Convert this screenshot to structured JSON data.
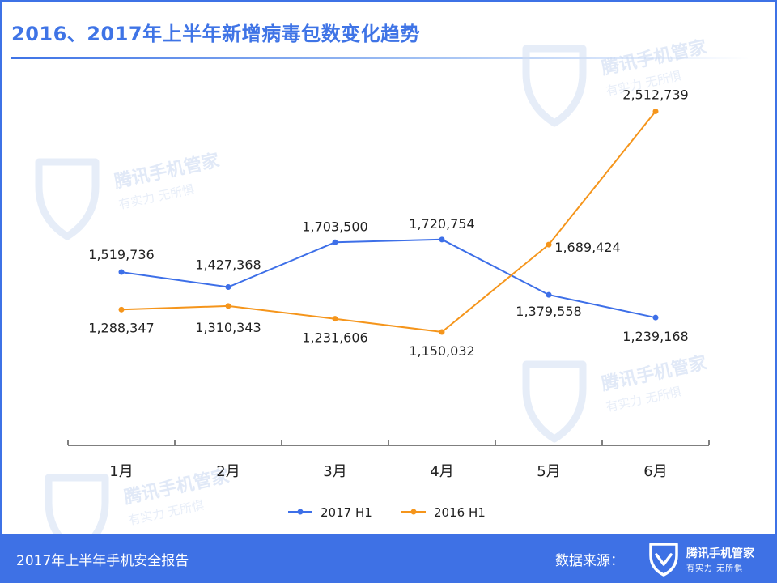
{
  "header": {
    "title": "2016、2017年上半年新增病毒包数变化趋势"
  },
  "watermark": {
    "name": "腾讯手机管家",
    "slogan": "有实力  无所惧"
  },
  "footer": {
    "report": "2017年上半年手机安全报告",
    "source_label": "数据来源：",
    "brand_name": "腾讯手机管家",
    "brand_slogan": "有实力  无所惧"
  },
  "colors": {
    "accent": "#3e71e5",
    "series_2017": "#3d6fe8",
    "series_2016": "#f5951b"
  },
  "chart_data": {
    "type": "line",
    "categories": [
      "1月",
      "2月",
      "3月",
      "4月",
      "5月",
      "6月"
    ],
    "series": [
      {
        "name": "2017 H1",
        "values": [
          1519736,
          1427368,
          1703500,
          1720754,
          1379558,
          1239168
        ],
        "labels": [
          "1,519,736",
          "1,427,368",
          "1,703,500",
          "1,720,754",
          "1,379,558",
          "1,239,168"
        ]
      },
      {
        "name": "2016 H1",
        "values": [
          1288347,
          1310343,
          1231606,
          1150032,
          1689424,
          2512739
        ],
        "labels": [
          "1,288,347",
          "1,310,343",
          "1,231,606",
          "1,150,032",
          "1,689,424",
          "2,512,739"
        ]
      }
    ],
    "ylim": [
      0,
      3000000
    ],
    "grid": false,
    "legend_position": "bottom"
  }
}
